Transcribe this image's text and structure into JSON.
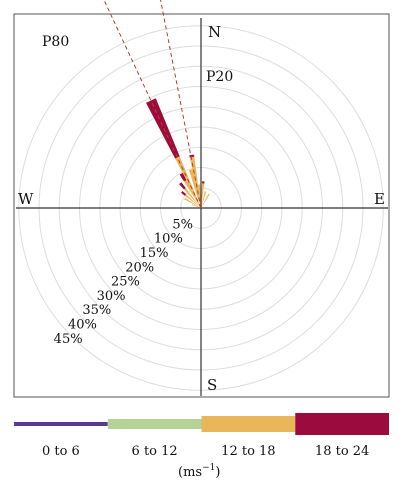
{
  "chart_data": {
    "type": "wind-rose",
    "directions": {
      "n": "N",
      "e": "E",
      "s": "S",
      "w": "W"
    },
    "ring_labels": [
      "5%",
      "10%",
      "15%",
      "20%",
      "25%",
      "30%",
      "35%",
      "40%",
      "45%"
    ],
    "ring_step_percent": 5,
    "max_percent": 45,
    "annotations": [
      {
        "text": "P80",
        "direction_deg": 335,
        "color": "#c0392b"
      },
      {
        "text": "P20",
        "direction_deg": 349,
        "color": "#c0392b"
      }
    ],
    "speed_bins": [
      {
        "name": "0 to 6",
        "color": "#5b3a96"
      },
      {
        "name": "6 to 12",
        "color": "#b5d396"
      },
      {
        "name": "12 to 18",
        "color": "#e9b65a"
      },
      {
        "name": "18 to 24",
        "color": "#9b0b3d"
      }
    ],
    "unit_label": "(ms",
    "unit_exponent": "−1",
    "unit_close": ")",
    "sectors": [
      {
        "dir_deg": 205,
        "segments": [
          0,
          0.4,
          0,
          0
        ]
      },
      {
        "dir_deg": 215,
        "segments": [
          0,
          0.4,
          0,
          0
        ]
      },
      {
        "dir_deg": 225,
        "segments": [
          0,
          0.3,
          0,
          0
        ]
      },
      {
        "dir_deg": 290,
        "segments": [
          0,
          0.2,
          2.2,
          0
        ]
      },
      {
        "dir_deg": 300,
        "segments": [
          0,
          0.2,
          4.5,
          0
        ]
      },
      {
        "dir_deg": 310,
        "segments": [
          0,
          0.2,
          4.8,
          1.2
        ]
      },
      {
        "dir_deg": 320,
        "segments": [
          0,
          0.2,
          6.0,
          1.8
        ]
      },
      {
        "dir_deg": 330,
        "segments": [
          0,
          0.3,
          7.5,
          2.0
        ]
      },
      {
        "dir_deg": 335,
        "segments": [
          0,
          0.3,
          13.5,
          15.5
        ]
      },
      {
        "dir_deg": 345,
        "segments": [
          0,
          0.3,
          9.5,
          0
        ]
      },
      {
        "dir_deg": 350,
        "segments": [
          0,
          0.3,
          12.5,
          0.5
        ]
      },
      {
        "dir_deg": 355,
        "segments": [
          0,
          0.3,
          5.5,
          0
        ]
      },
      {
        "dir_deg": 5,
        "segments": [
          0,
          0.3,
          5.8,
          0.5
        ]
      },
      {
        "dir_deg": 15,
        "segments": [
          0,
          0.2,
          4.0,
          0
        ]
      },
      {
        "dir_deg": 30,
        "segments": [
          0,
          0.2,
          3.8,
          0
        ]
      }
    ]
  }
}
